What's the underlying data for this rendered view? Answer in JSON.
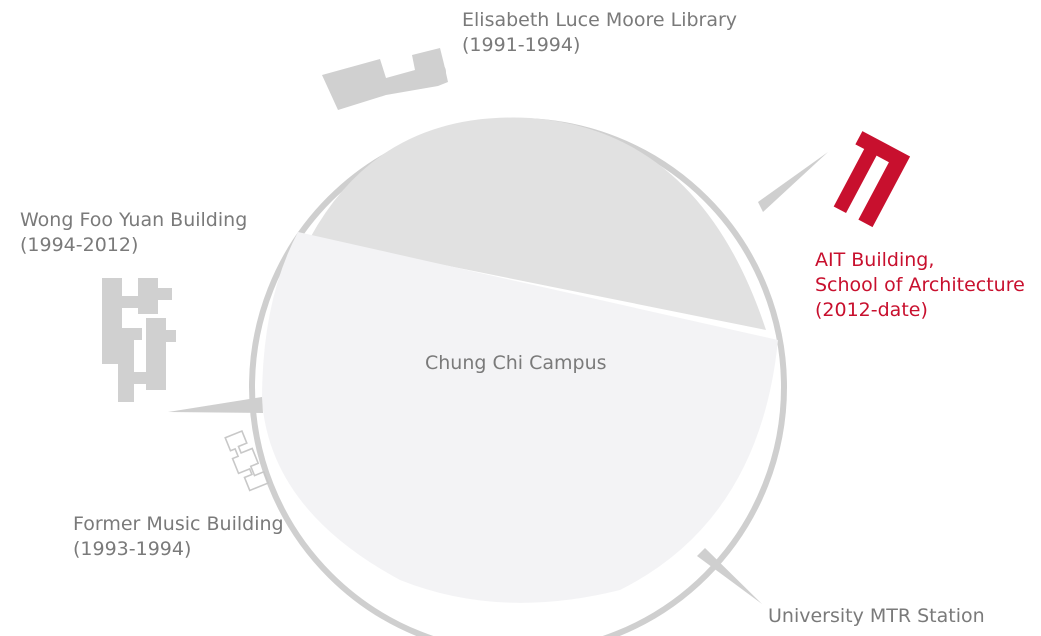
{
  "colors": {
    "ring": "#cfcfcf",
    "dome": "#e1e1e1",
    "campus_fill": "#f3f3f5",
    "building_gray": "#d0d0d0",
    "accent": "#c8102e",
    "text": "#7a7a7a"
  },
  "center": {
    "label": "Chung Chi Campus"
  },
  "buildings": [
    {
      "id": "library",
      "line1": "Elisabeth Luce Moore Library",
      "line2": "(1991-1994)"
    },
    {
      "id": "wong",
      "line1": "Wong Foo Yuan Building",
      "line2": "(1994-2012)"
    },
    {
      "id": "ait",
      "line1": "AIT Building,",
      "line2": "School of Architecture",
      "line3": "(2012-date)"
    },
    {
      "id": "music",
      "line1": "Former Music Building",
      "line2": "(1993-1994)"
    },
    {
      "id": "mtr",
      "line1": "University MTR Station"
    }
  ]
}
